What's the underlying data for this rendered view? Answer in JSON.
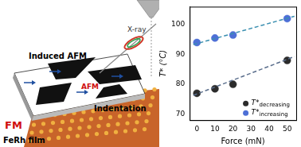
{
  "chart_data": {
    "type": "scatter",
    "x_label": "Force (mN)",
    "y_label": "T* (°C)",
    "xlim": [
      -4,
      55
    ],
    "xticks": [
      0,
      10,
      20,
      30,
      40,
      50
    ],
    "ylim": [
      68,
      106
    ],
    "yticks": [
      70,
      80,
      90,
      100
    ],
    "grid": false,
    "legend": "lower right",
    "x": [
      0,
      10,
      20,
      50
    ],
    "series": [
      {
        "name": "T*decreasing",
        "color": "#2b2b2b",
        "marker": "circle",
        "values": [
          77,
          78.5,
          80,
          88
        ],
        "trend": {
          "x": [
            -2,
            54
          ],
          "values": [
            76.3,
            89.3
          ],
          "color": "#5a6e8c",
          "line_style": "dashed"
        }
      },
      {
        "name": "T*increasing",
        "color": "#4d6fd6",
        "marker": "circle",
        "values": [
          94,
          95.5,
          96.5,
          102
        ],
        "trend": {
          "x": [
            -2,
            54
          ],
          "values": [
            93.3,
            102.8
          ],
          "color": "#3a8fb0",
          "line_style": "dashed"
        }
      }
    ]
  },
  "illustration": {
    "labels": {
      "xray": "X-ray",
      "induced": "Induced AFM",
      "afm": "AFM",
      "fm": "FM",
      "indentation": "Indentation",
      "film": "FeRh film"
    }
  }
}
